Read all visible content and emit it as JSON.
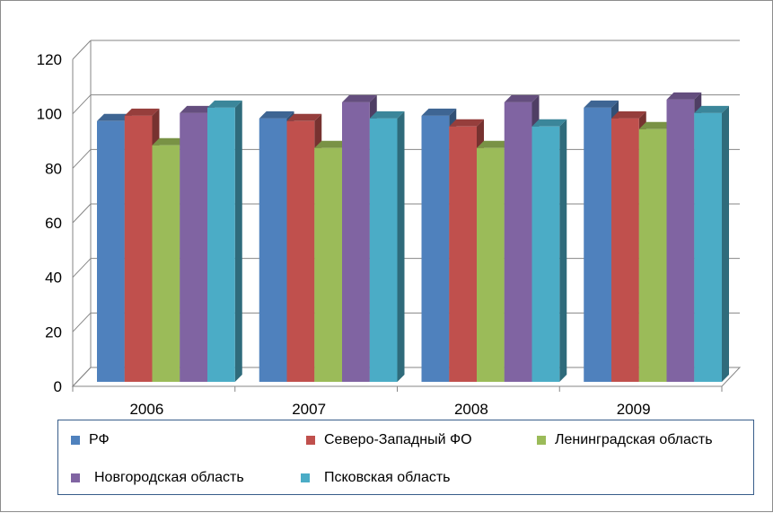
{
  "chart_data": {
    "type": "bar",
    "categories": [
      "2006",
      "2007",
      "2008",
      "2009"
    ],
    "series": [
      {
        "name": "РФ",
        "color": "#4f81bd",
        "values": [
          97,
          98,
          99,
          102
        ]
      },
      {
        "name": "Северо-Западный ФО",
        "color": "#c0504d",
        "values": [
          99,
          97,
          95,
          98
        ]
      },
      {
        "name": "Ленинградская область",
        "color": "#9bbb59",
        "values": [
          88,
          87,
          87,
          94
        ]
      },
      {
        "name": "Новгородская область",
        "color": "#8064a2",
        "values": [
          100,
          104,
          104,
          105
        ]
      },
      {
        "name": "Псковская область",
        "color": "#4bacc6",
        "values": [
          102,
          98,
          95,
          100
        ]
      }
    ],
    "yticks": [
      "0",
      "20",
      "40",
      "60",
      "80",
      "100",
      "120"
    ],
    "ylim": [
      0,
      120
    ],
    "grid": true,
    "style": "3d-clustered-column",
    "legend_position": "bottom"
  }
}
